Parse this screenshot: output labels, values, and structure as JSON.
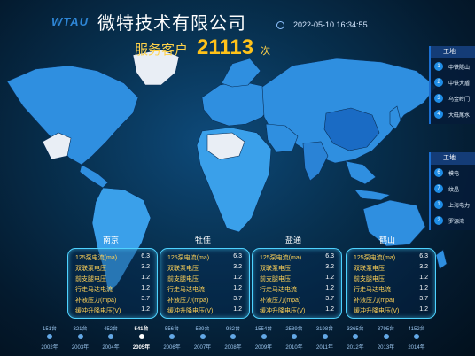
{
  "header": {
    "logo": "WTAU",
    "company": "微特技术有限公司",
    "datetime": "2022-05-10 16:34:55",
    "served_label": "服务客户",
    "served_count": "21113",
    "served_unit": "次"
  },
  "side_panel_1": {
    "title": "工地",
    "items": [
      {
        "num": "1",
        "label": "中铁隧山"
      },
      {
        "num": "2",
        "label": "中铁大盾"
      },
      {
        "num": "3",
        "label": "乌金岭门"
      },
      {
        "num": "4",
        "label": "大砥尾水"
      }
    ]
  },
  "side_panel_2": {
    "title": "工地",
    "items": [
      {
        "num": "6",
        "label": "模电"
      },
      {
        "num": "7",
        "label": "纹晶"
      },
      {
        "num": "1",
        "label": "上海电力"
      },
      {
        "num": "2",
        "label": "罗源湾"
      }
    ]
  },
  "cards": [
    {
      "title": "南京",
      "rows": [
        {
          "k": "125泵电流(ma)",
          "v": "6.3"
        },
        {
          "k": "双联泵电压",
          "v": "3.2"
        },
        {
          "k": "前支腿电压",
          "v": "1.2"
        },
        {
          "k": "行走马达电流",
          "v": "1.2"
        },
        {
          "k": "补液压力(mpa)",
          "v": "3.7"
        },
        {
          "k": "缓冲升降电压(V)",
          "v": "1.2"
        }
      ]
    },
    {
      "title": "牡佳",
      "rows": [
        {
          "k": "125泵电流(ma)",
          "v": "6.3"
        },
        {
          "k": "双联泵电压",
          "v": "3.2"
        },
        {
          "k": "前支腿电压",
          "v": "1.2"
        },
        {
          "k": "行走马达电流",
          "v": "1.2"
        },
        {
          "k": "补液压力(mpa)",
          "v": "3.7"
        },
        {
          "k": "缓冲升降电压(V)",
          "v": "1.2"
        }
      ]
    },
    {
      "title": "盐通",
      "rows": [
        {
          "k": "125泵电流(ma)",
          "v": "6.3"
        },
        {
          "k": "双联泵电压",
          "v": "3.2"
        },
        {
          "k": "前支腿电压",
          "v": "1.2"
        },
        {
          "k": "行走马达电流",
          "v": "1.2"
        },
        {
          "k": "补液压力(mpa)",
          "v": "3.7"
        },
        {
          "k": "缓冲升降电压(V)",
          "v": "1.2"
        }
      ]
    },
    {
      "title": "鹤山",
      "rows": [
        {
          "k": "125泵电流(ma)",
          "v": "6.3"
        },
        {
          "k": "双联泵电压",
          "v": "3.2"
        },
        {
          "k": "前支腿电压",
          "v": "1.2"
        },
        {
          "k": "行走马达电流",
          "v": "1.2"
        },
        {
          "k": "补液压力(mpa)",
          "v": "3.7"
        },
        {
          "k": "缓冲升降电压(V)",
          "v": "1.2"
        }
      ]
    }
  ],
  "timeline": {
    "counts": [
      "151台",
      "321台",
      "452台",
      "541台",
      "556台",
      "589台",
      "982台",
      "1554台",
      "2589台",
      "3198台",
      "3365台",
      "3795台",
      "4152台"
    ],
    "years": [
      "2002年",
      "2003年",
      "2004年",
      "2005年",
      "2006年",
      "2007年",
      "2008年",
      "2009年",
      "2010年",
      "2011年",
      "2012年",
      "2013年",
      "2014年"
    ],
    "active_index": 3
  }
}
